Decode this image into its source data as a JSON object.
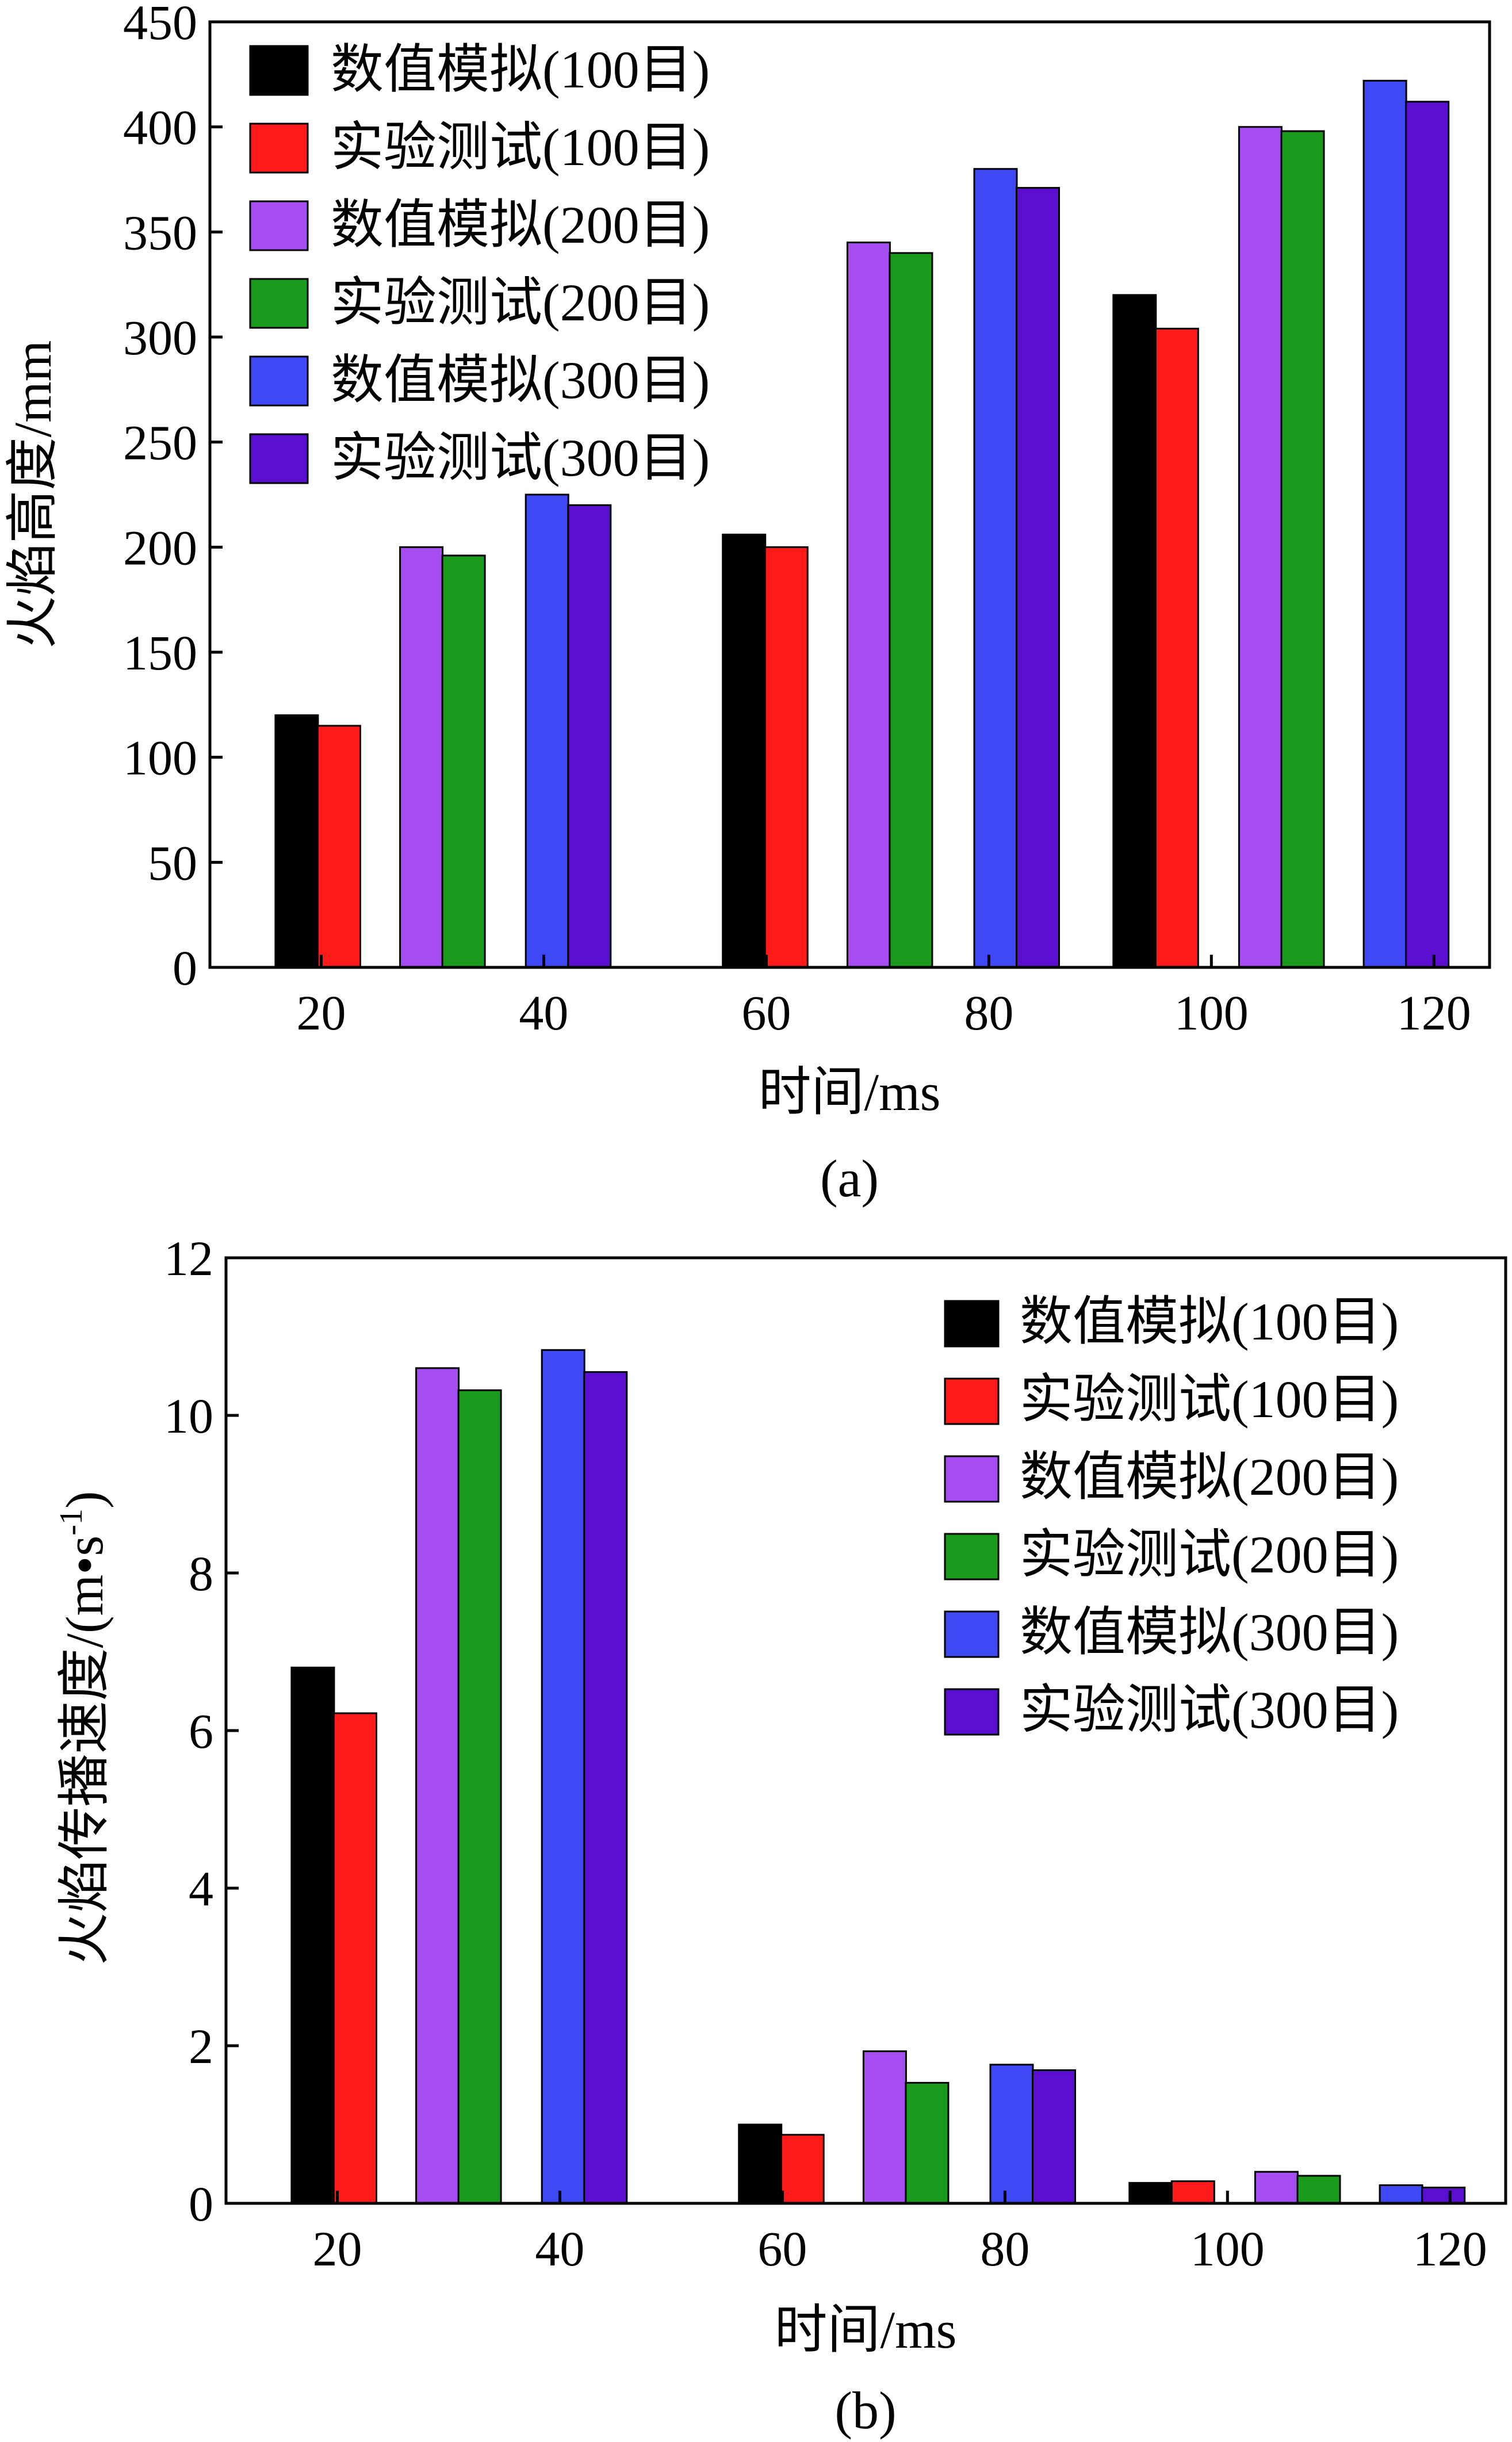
{
  "colors": {
    "sim100": "#000000",
    "exp100": "#ff1a1a",
    "sim200": "#a64df2",
    "exp200": "#1a9a1a",
    "sim300": "#3f48f5",
    "exp300": "#5a0fd0"
  },
  "chart_data": [
    {
      "type": "bar",
      "panel": "(a)",
      "xlabel": "时间/ms",
      "ylabel": "火焰高度/mm",
      "ylim": [
        0,
        450
      ],
      "yticks": [
        0,
        50,
        100,
        150,
        200,
        250,
        300,
        350,
        400,
        450
      ],
      "xlim": [
        10,
        125
      ],
      "xticks": [
        20,
        40,
        60,
        80,
        100,
        120
      ],
      "legend_position": "top-left",
      "legend": [
        "数值模拟(100目)",
        "实验测试(100目)",
        "数值模拟(200目)",
        "实验测试(200目)",
        "数值模拟(300目)",
        "实验测试(300目)"
      ],
      "series": [
        {
          "name": "数值模拟(100目)",
          "color_key": "sim100",
          "points": [
            {
              "x": 17.8,
              "y": 120
            },
            {
              "x": 58.0,
              "y": 206
            },
            {
              "x": 93.1,
              "y": 320
            }
          ]
        },
        {
          "name": "实验测试(100目)",
          "color_key": "exp100",
          "points": [
            {
              "x": 21.6,
              "y": 115
            },
            {
              "x": 61.8,
              "y": 200
            },
            {
              "x": 96.9,
              "y": 304
            }
          ]
        },
        {
          "name": "数值模拟(200目)",
          "color_key": "sim200",
          "points": [
            {
              "x": 29.0,
              "y": 200
            },
            {
              "x": 69.2,
              "y": 345
            },
            {
              "x": 104.4,
              "y": 400
            }
          ]
        },
        {
          "name": "实验测试(200目)",
          "color_key": "exp200",
          "points": [
            {
              "x": 32.8,
              "y": 196
            },
            {
              "x": 73.0,
              "y": 340
            },
            {
              "x": 108.2,
              "y": 398
            }
          ]
        },
        {
          "name": "数值模拟(300目)",
          "color_key": "sim300",
          "points": [
            {
              "x": 40.3,
              "y": 225
            },
            {
              "x": 80.6,
              "y": 380
            },
            {
              "x": 115.6,
              "y": 422
            }
          ]
        },
        {
          "name": "实验测试(300目)",
          "color_key": "exp300",
          "points": [
            {
              "x": 44.1,
              "y": 220
            },
            {
              "x": 84.4,
              "y": 371
            },
            {
              "x": 119.4,
              "y": 412
            }
          ]
        }
      ]
    },
    {
      "type": "bar",
      "panel": "(b)",
      "xlabel": "时间/ms",
      "ylabel": "火焰传播速度/(m•s",
      "ylabel_sup": "-1",
      "ylabel_end": ")",
      "ylim": [
        0,
        12
      ],
      "yticks": [
        0,
        2,
        4,
        6,
        8,
        10,
        12
      ],
      "xlim": [
        10,
        125
      ],
      "xticks": [
        20,
        40,
        60,
        80,
        100,
        120
      ],
      "legend_position": "top-right",
      "legend": [
        "数值模拟(100目)",
        "实验测试(100目)",
        "数值模拟(200目)",
        "实验测试(200目)",
        "数值模拟(300目)",
        "实验测试(300目)"
      ],
      "series": [
        {
          "name": "数值模拟(100目)",
          "color_key": "sim100",
          "points": [
            {
              "x": 17.8,
              "y": 6.8
            },
            {
              "x": 58.0,
              "y": 1.0
            },
            {
              "x": 93.1,
              "y": 0.26
            }
          ]
        },
        {
          "name": "实验测试(100目)",
          "color_key": "exp100",
          "points": [
            {
              "x": 21.6,
              "y": 6.22
            },
            {
              "x": 61.8,
              "y": 0.87
            },
            {
              "x": 96.9,
              "y": 0.28
            }
          ]
        },
        {
          "name": "数值模拟(200目)",
          "color_key": "sim200",
          "points": [
            {
              "x": 29.0,
              "y": 10.6
            },
            {
              "x": 69.2,
              "y": 1.93
            },
            {
              "x": 104.4,
              "y": 0.4
            }
          ]
        },
        {
          "name": "实验测试(200目)",
          "color_key": "exp200",
          "points": [
            {
              "x": 32.8,
              "y": 10.32
            },
            {
              "x": 73.0,
              "y": 1.53
            },
            {
              "x": 108.2,
              "y": 0.35
            }
          ]
        },
        {
          "name": "数值模拟(300目)",
          "color_key": "sim300",
          "points": [
            {
              "x": 40.3,
              "y": 10.83
            },
            {
              "x": 80.6,
              "y": 1.76
            },
            {
              "x": 115.6,
              "y": 0.23
            }
          ]
        },
        {
          "name": "实验测试(300目)",
          "color_key": "exp300",
          "points": [
            {
              "x": 44.1,
              "y": 10.55
            },
            {
              "x": 84.4,
              "y": 1.69
            },
            {
              "x": 119.4,
              "y": 0.2
            }
          ]
        }
      ]
    }
  ]
}
